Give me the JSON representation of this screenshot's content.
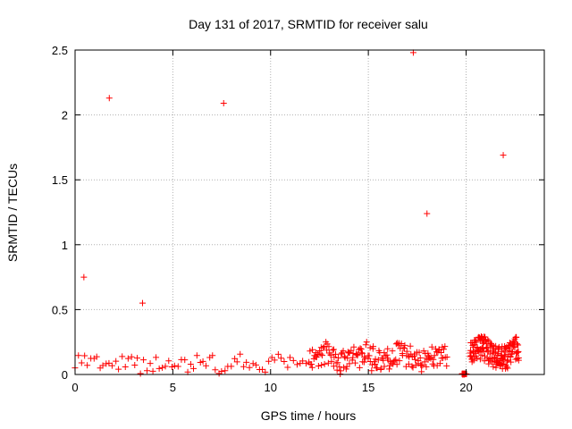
{
  "chart_data": {
    "type": "scatter",
    "title": "Day 131 of 2017, SRMTID for receiver salu",
    "xlabel": "GPS time / hours",
    "ylabel": "SRMTID / TECUs",
    "xlim": [
      0,
      24
    ],
    "ylim": [
      0,
      2.5
    ],
    "xticks": [
      0,
      5,
      10,
      15,
      20
    ],
    "yticks": [
      0,
      0.5,
      1,
      1.5,
      2,
      2.5
    ],
    "xtick_labels": [
      "0",
      "5",
      "10",
      "15",
      "20"
    ],
    "ytick_labels": [
      "0",
      "0.5",
      "1",
      "1.5",
      "2",
      "2.5"
    ],
    "grid": true,
    "marker": "+",
    "color": "#ff0000",
    "outliers": [
      {
        "x": 0.45,
        "y": 0.75
      },
      {
        "x": 1.75,
        "y": 2.13
      },
      {
        "x": 3.45,
        "y": 0.55
      },
      {
        "x": 7.6,
        "y": 2.09
      },
      {
        "x": 17.3,
        "y": 2.48
      },
      {
        "x": 18.0,
        "y": 1.24
      },
      {
        "x": 21.9,
        "y": 1.69
      }
    ],
    "baseline_segments": [
      {
        "x_start": 0.0,
        "x_end": 19.0,
        "y_min": 0.0,
        "y_max": 0.17,
        "density": 120
      },
      {
        "x_start": 12.0,
        "x_end": 19.0,
        "y_min": 0.02,
        "y_max": 0.26,
        "density": 140
      },
      {
        "x_start": 19.8,
        "x_end": 20.0,
        "y_min": 0.0,
        "y_max": 0.01,
        "density": 20
      },
      {
        "x_start": 20.2,
        "x_end": 22.7,
        "y_min": 0.02,
        "y_max": 0.3,
        "density": 160
      }
    ]
  }
}
